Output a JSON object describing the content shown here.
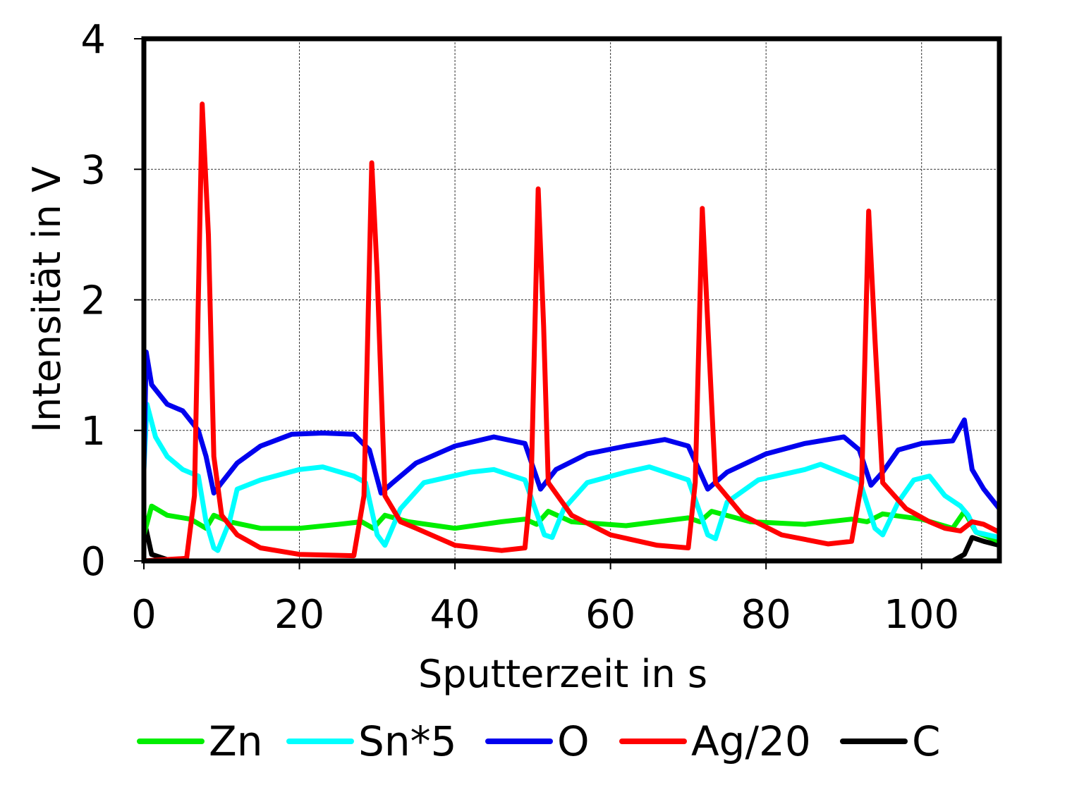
{
  "chart_data": {
    "type": "line",
    "title": "",
    "xlabel": "Sputterzeit in s",
    "ylabel": "Intensität in V",
    "xlim": [
      0,
      110
    ],
    "ylim": [
      0,
      4
    ],
    "xticks": [
      0,
      20,
      40,
      60,
      80,
      100
    ],
    "yticks": [
      0,
      1,
      2,
      3,
      4
    ],
    "grid": true,
    "legend_position": "bottom",
    "series": [
      {
        "name": "Zn",
        "color": "#00ee00",
        "points": [
          [
            0,
            0.2
          ],
          [
            1,
            0.42
          ],
          [
            3,
            0.35
          ],
          [
            6,
            0.32
          ],
          [
            8,
            0.25
          ],
          [
            9,
            0.35
          ],
          [
            11,
            0.3
          ],
          [
            15,
            0.25
          ],
          [
            20,
            0.25
          ],
          [
            25,
            0.28
          ],
          [
            28,
            0.3
          ],
          [
            29.5,
            0.25
          ],
          [
            31,
            0.35
          ],
          [
            34,
            0.3
          ],
          [
            40,
            0.25
          ],
          [
            46,
            0.3
          ],
          [
            49,
            0.32
          ],
          [
            50.5,
            0.28
          ],
          [
            52,
            0.38
          ],
          [
            55,
            0.3
          ],
          [
            62,
            0.27
          ],
          [
            70,
            0.33
          ],
          [
            71.5,
            0.3
          ],
          [
            73,
            0.38
          ],
          [
            78,
            0.3
          ],
          [
            85,
            0.28
          ],
          [
            91,
            0.32
          ],
          [
            93,
            0.3
          ],
          [
            95,
            0.36
          ],
          [
            100,
            0.32
          ],
          [
            104,
            0.25
          ],
          [
            105.5,
            0.38
          ],
          [
            107,
            0.22
          ],
          [
            110,
            0.15
          ]
        ]
      },
      {
        "name": "Sn*5",
        "color": "#00ffff",
        "points": [
          [
            0,
            0.7
          ],
          [
            0.4,
            1.2
          ],
          [
            1.5,
            0.95
          ],
          [
            3,
            0.8
          ],
          [
            5,
            0.7
          ],
          [
            7,
            0.65
          ],
          [
            8,
            0.3
          ],
          [
            9,
            0.1
          ],
          [
            9.5,
            0.08
          ],
          [
            11,
            0.3
          ],
          [
            12,
            0.55
          ],
          [
            15,
            0.62
          ],
          [
            20,
            0.7
          ],
          [
            23,
            0.72
          ],
          [
            27,
            0.65
          ],
          [
            28.5,
            0.6
          ],
          [
            30,
            0.2
          ],
          [
            31,
            0.12
          ],
          [
            33,
            0.4
          ],
          [
            36,
            0.6
          ],
          [
            42,
            0.68
          ],
          [
            45,
            0.7
          ],
          [
            49,
            0.62
          ],
          [
            51.5,
            0.2
          ],
          [
            52.5,
            0.18
          ],
          [
            54,
            0.4
          ],
          [
            57,
            0.6
          ],
          [
            62,
            0.68
          ],
          [
            65,
            0.72
          ],
          [
            70,
            0.62
          ],
          [
            72.5,
            0.2
          ],
          [
            73.5,
            0.17
          ],
          [
            75,
            0.45
          ],
          [
            79,
            0.62
          ],
          [
            85,
            0.7
          ],
          [
            87,
            0.74
          ],
          [
            92,
            0.62
          ],
          [
            94,
            0.25
          ],
          [
            95,
            0.2
          ],
          [
            97,
            0.45
          ],
          [
            99,
            0.62
          ],
          [
            101,
            0.65
          ],
          [
            103,
            0.5
          ],
          [
            105,
            0.42
          ],
          [
            106,
            0.35
          ],
          [
            107,
            0.22
          ],
          [
            110,
            0.18
          ]
        ]
      },
      {
        "name": "O",
        "color": "#0000ee",
        "points": [
          [
            0,
            0.7
          ],
          [
            0.3,
            1.6
          ],
          [
            1,
            1.35
          ],
          [
            3,
            1.2
          ],
          [
            5,
            1.15
          ],
          [
            7,
            1.0
          ],
          [
            8,
            0.8
          ],
          [
            9,
            0.52
          ],
          [
            10,
            0.6
          ],
          [
            12,
            0.75
          ],
          [
            15,
            0.88
          ],
          [
            19,
            0.97
          ],
          [
            23,
            0.98
          ],
          [
            27,
            0.97
          ],
          [
            29,
            0.85
          ],
          [
            30.5,
            0.52
          ],
          [
            32,
            0.6
          ],
          [
            35,
            0.75
          ],
          [
            40,
            0.88
          ],
          [
            45,
            0.95
          ],
          [
            49,
            0.9
          ],
          [
            51,
            0.55
          ],
          [
            53,
            0.7
          ],
          [
            57,
            0.82
          ],
          [
            62,
            0.88
          ],
          [
            67,
            0.93
          ],
          [
            70,
            0.88
          ],
          [
            72.5,
            0.55
          ],
          [
            75,
            0.68
          ],
          [
            80,
            0.82
          ],
          [
            85,
            0.9
          ],
          [
            90,
            0.95
          ],
          [
            92,
            0.85
          ],
          [
            93.5,
            0.58
          ],
          [
            95,
            0.68
          ],
          [
            97,
            0.85
          ],
          [
            100,
            0.9
          ],
          [
            104,
            0.92
          ],
          [
            105.5,
            1.08
          ],
          [
            106.5,
            0.7
          ],
          [
            108,
            0.55
          ],
          [
            110,
            0.4
          ]
        ]
      },
      {
        "name": "Ag/20",
        "color": "#ff0000",
        "points": [
          [
            0,
            0
          ],
          [
            5.5,
            0.02
          ],
          [
            6.5,
            0.5
          ],
          [
            7.5,
            3.5
          ],
          [
            8.3,
            2.5
          ],
          [
            9,
            0.8
          ],
          [
            10,
            0.35
          ],
          [
            12,
            0.2
          ],
          [
            15,
            0.1
          ],
          [
            20,
            0.05
          ],
          [
            27,
            0.04
          ],
          [
            28.3,
            0.5
          ],
          [
            29.3,
            3.05
          ],
          [
            30,
            2.2
          ],
          [
            31,
            0.5
          ],
          [
            33,
            0.3
          ],
          [
            35,
            0.25
          ],
          [
            40,
            0.12
          ],
          [
            46,
            0.08
          ],
          [
            49,
            0.1
          ],
          [
            49.8,
            0.6
          ],
          [
            50.7,
            2.85
          ],
          [
            51.4,
            1.8
          ],
          [
            52,
            0.6
          ],
          [
            55,
            0.35
          ],
          [
            60,
            0.2
          ],
          [
            66,
            0.12
          ],
          [
            70,
            0.1
          ],
          [
            70.9,
            0.6
          ],
          [
            71.8,
            2.7
          ],
          [
            72.6,
            1.7
          ],
          [
            73.5,
            0.6
          ],
          [
            77,
            0.35
          ],
          [
            82,
            0.2
          ],
          [
            88,
            0.13
          ],
          [
            91,
            0.15
          ],
          [
            92.3,
            0.6
          ],
          [
            93.2,
            2.68
          ],
          [
            94,
            1.7
          ],
          [
            95,
            0.6
          ],
          [
            98,
            0.4
          ],
          [
            101,
            0.3
          ],
          [
            103,
            0.25
          ],
          [
            105,
            0.23
          ],
          [
            106.5,
            0.3
          ],
          [
            108,
            0.28
          ],
          [
            110,
            0.22
          ]
        ]
      },
      {
        "name": "C",
        "color": "#000000",
        "points": [
          [
            0,
            0.32
          ],
          [
            1,
            0.05
          ],
          [
            3,
            0.01
          ],
          [
            5,
            0
          ],
          [
            104,
            0
          ],
          [
            105.5,
            0.05
          ],
          [
            106.5,
            0.18
          ],
          [
            108,
            0.15
          ],
          [
            110,
            0.12
          ]
        ]
      }
    ]
  }
}
